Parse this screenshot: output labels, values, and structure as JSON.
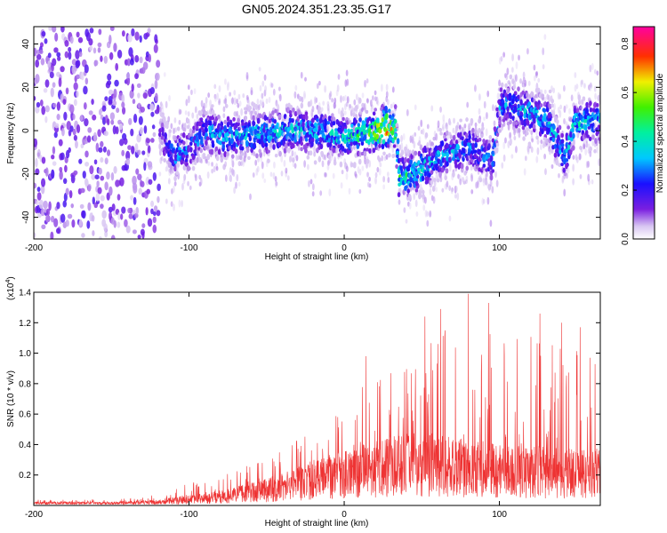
{
  "figure": {
    "title": "GN05.2024.351.23.35.G17"
  },
  "chart_data": [
    {
      "type": "heatmap",
      "title": "GN05.2024.351.23.35.G17",
      "xlabel": "Height of straight line (km)",
      "ylabel": "Frequency (Hz)",
      "xlim": [
        -200,
        165
      ],
      "ylim": [
        -50,
        48
      ],
      "xticks": [
        -200,
        -100,
        0,
        100
      ],
      "yticks": [
        40,
        20,
        0,
        -20,
        -40
      ],
      "xtick_labels": [
        "-200",
        "-100",
        "0",
        "100"
      ],
      "ytick_labels": [
        "40",
        "20",
        "0",
        "-20",
        "-40"
      ],
      "colorbar": {
        "label": "Normalized spectral amplitude",
        "range": [
          0.0,
          0.87
        ],
        "ticks": [
          0.0,
          0.2,
          0.4,
          0.6,
          0.8
        ],
        "tick_labels": [
          "0.0",
          "0.2",
          "0.4",
          "0.6",
          "0.8"
        ],
        "colormap": "rainbow (white-violet-blue-cyan-green-yellow-red-magenta)"
      },
      "ridge": [
        {
          "x": -200,
          "f": 0,
          "a": 0.08
        },
        {
          "x": -120,
          "f": 0,
          "a": 0.1
        },
        {
          "x": -110,
          "f": -12,
          "a": 0.3
        },
        {
          "x": -100,
          "f": -8,
          "a": 0.28
        },
        {
          "x": -90,
          "f": 0,
          "a": 0.3
        },
        {
          "x": -80,
          "f": -3,
          "a": 0.32
        },
        {
          "x": -60,
          "f": -2,
          "a": 0.34
        },
        {
          "x": -40,
          "f": 0,
          "a": 0.36
        },
        {
          "x": -20,
          "f": 0,
          "a": 0.36
        },
        {
          "x": 0,
          "f": -3,
          "a": 0.38
        },
        {
          "x": 20,
          "f": 0,
          "a": 0.55
        },
        {
          "x": 28,
          "f": 2,
          "a": 0.8
        },
        {
          "x": 33,
          "f": 1,
          "a": 0.55
        },
        {
          "x": 35,
          "f": -21,
          "a": 0.45
        },
        {
          "x": 45,
          "f": -20,
          "a": 0.4
        },
        {
          "x": 60,
          "f": -12,
          "a": 0.32
        },
        {
          "x": 80,
          "f": -8,
          "a": 0.3
        },
        {
          "x": 95,
          "f": -14,
          "a": 0.28
        },
        {
          "x": 100,
          "f": 12,
          "a": 0.3
        },
        {
          "x": 115,
          "f": 10,
          "a": 0.34
        },
        {
          "x": 130,
          "f": 5,
          "a": 0.34
        },
        {
          "x": 142,
          "f": -12,
          "a": 0.32
        },
        {
          "x": 148,
          "f": 3,
          "a": 0.4
        },
        {
          "x": 165,
          "f": 5,
          "a": 0.32
        }
      ]
    },
    {
      "type": "line",
      "xlabel": "Height of straight line (km)",
      "ylabel": "SNR (10 * v/v)",
      "y_multiplier_label": "(x10",
      "y_multiplier_exp": "4",
      "y_multiplier_close": ")",
      "color": "#ee3333",
      "xlim": [
        -200,
        165
      ],
      "ylim": [
        0,
        14000
      ],
      "xticks": [
        -200,
        -100,
        0,
        100
      ],
      "xtick_labels": [
        "-200",
        "-100",
        "0",
        "100"
      ],
      "yticks": [
        2000,
        4000,
        6000,
        8000,
        10000,
        12000,
        14000
      ],
      "ytick_labels": [
        "0.2",
        "0.4",
        "0.6",
        "0.8",
        "1.0",
        "1.2",
        "1.4"
      ],
      "envelope": [
        {
          "x": -200,
          "base": 200,
          "peak": 400
        },
        {
          "x": -150,
          "base": 200,
          "peak": 400
        },
        {
          "x": -120,
          "base": 300,
          "peak": 700
        },
        {
          "x": -100,
          "base": 600,
          "peak": 1500
        },
        {
          "x": -80,
          "base": 800,
          "peak": 1900
        },
        {
          "x": -60,
          "base": 1200,
          "peak": 2700
        },
        {
          "x": -40,
          "base": 1700,
          "peak": 3600
        },
        {
          "x": -20,
          "base": 2400,
          "peak": 5000
        },
        {
          "x": 0,
          "base": 3000,
          "peak": 7000
        },
        {
          "x": 20,
          "base": 3400,
          "peak": 8500
        },
        {
          "x": 40,
          "base": 3800,
          "peak": 9600
        },
        {
          "x": 60,
          "base": 3800,
          "peak": 11500
        },
        {
          "x": 80,
          "base": 3500,
          "peak": 12600
        },
        {
          "x": 100,
          "base": 3200,
          "peak": 11000
        },
        {
          "x": 120,
          "base": 3200,
          "peak": 11500
        },
        {
          "x": 140,
          "base": 3000,
          "peak": 10500
        },
        {
          "x": 165,
          "base": 3000,
          "peak": 9800
        }
      ],
      "peaks": [
        {
          "x": 14,
          "y": 9800
        },
        {
          "x": 52,
          "y": 12400
        },
        {
          "x": 62,
          "y": 12900
        },
        {
          "x": 80,
          "y": 13900
        },
        {
          "x": 93,
          "y": 13300
        },
        {
          "x": 126,
          "y": 12600
        },
        {
          "x": 140,
          "y": 12000
        },
        {
          "x": 152,
          "y": 11700
        }
      ]
    }
  ]
}
